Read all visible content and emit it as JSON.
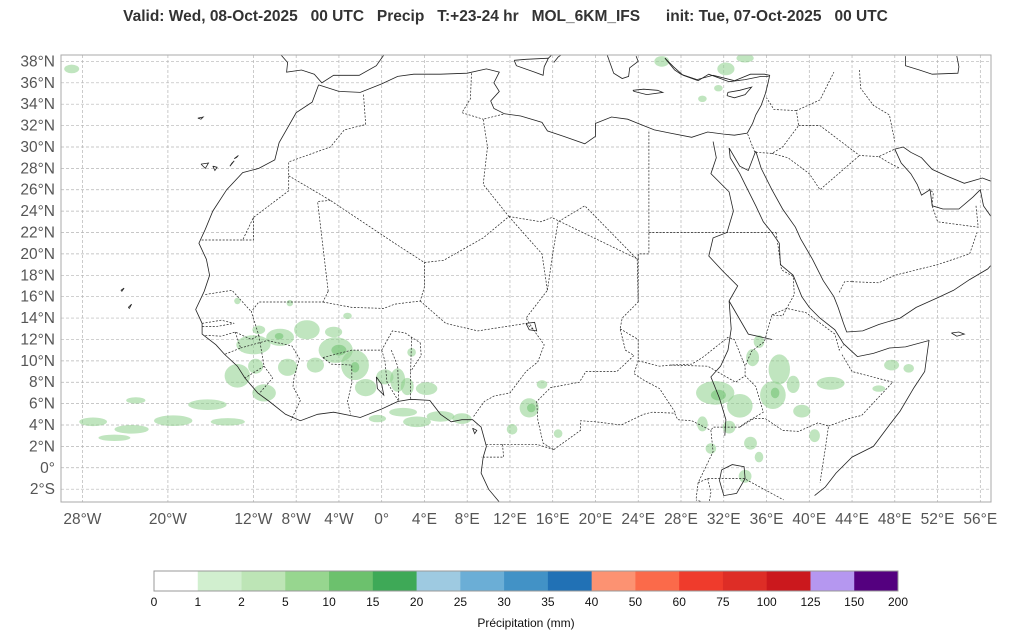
{
  "title": "Valid: Wed, 08-Oct-2025   00 UTC   Precip   T:+23-24 hr   MOL_6KM_IFS      init: Tue, 07-Oct-2025   00 UTC",
  "map": {
    "lat_ticks": [
      "38°N",
      "36°N",
      "34°N",
      "32°N",
      "30°N",
      "28°N",
      "26°N",
      "24°N",
      "22°N",
      "20°N",
      "18°N",
      "16°N",
      "14°N",
      "12°N",
      "10°N",
      "8°N",
      "6°N",
      "4°N",
      "2°N",
      "0°",
      "2°S"
    ],
    "lon_ticks": [
      "28°W",
      "20°W",
      "12°W",
      "8°W",
      "4°W",
      "0°",
      "4°E",
      "8°E",
      "12°E",
      "16°E",
      "20°E",
      "24°E",
      "28°E",
      "32°E",
      "36°E",
      "40°E",
      "44°E",
      "48°E",
      "52°E",
      "56°E"
    ],
    "lat_range": [
      -3.2,
      38.6
    ],
    "lon_range": [
      -30,
      57
    ],
    "gridlines": true,
    "precip_color": "#8ccf8a"
  },
  "colorbar": {
    "label": "Précipitation (mm)",
    "ticks": [
      "0",
      "1",
      "2",
      "5",
      "10",
      "15",
      "20",
      "25",
      "30",
      "35",
      "40",
      "50",
      "60",
      "75",
      "100",
      "125",
      "150",
      "200"
    ],
    "colors": [
      "#ffffff",
      "#d1efcf",
      "#bde5b6",
      "#97d68f",
      "#6cc16d",
      "#3ea957",
      "#9ecae1",
      "#6baed6",
      "#4292c6",
      "#2171b5",
      "#fc9272",
      "#fb6a4a",
      "#ef3b2c",
      "#de2d26",
      "#cb181d",
      "#b597f0",
      "#54007f"
    ]
  }
}
